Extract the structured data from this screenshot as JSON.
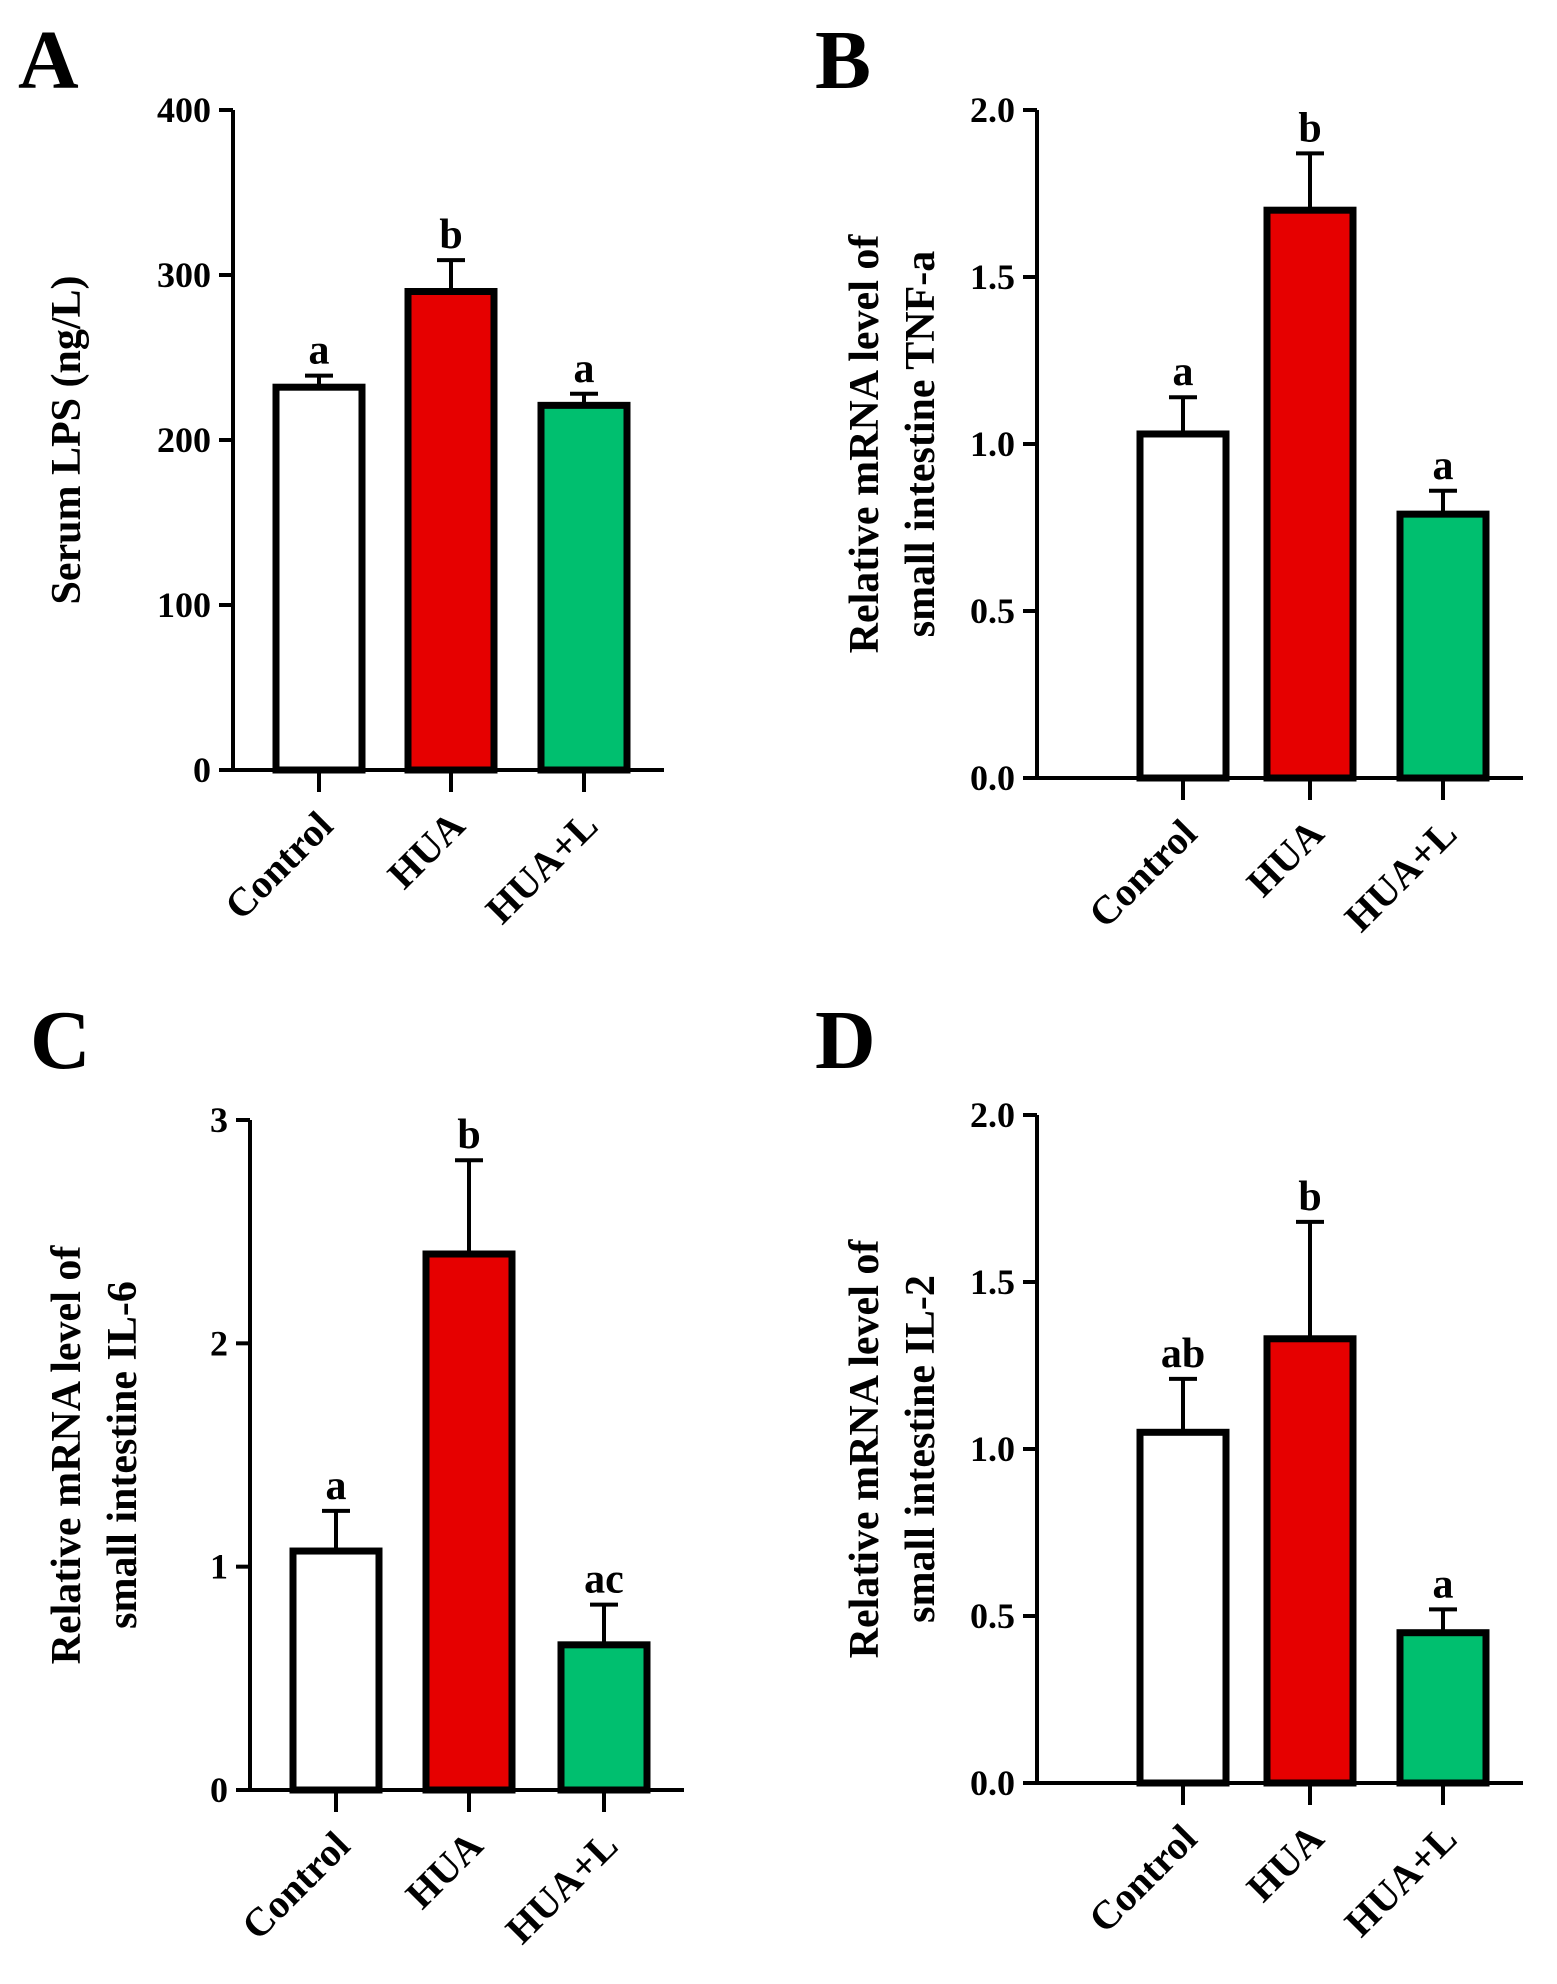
{
  "colors": {
    "Control": "#ffffff",
    "HUA": "#e60000",
    "HUA+L": "#00bf6f",
    "axis": "#000000"
  },
  "chart_data": [
    {
      "panel": "A",
      "type": "bar",
      "categories": [
        "Control",
        "HUA",
        "HUA+L"
      ],
      "values": [
        232,
        290,
        221
      ],
      "errors": [
        7,
        19,
        7
      ],
      "significance": [
        "a",
        "b",
        "a"
      ],
      "ylabel": [
        "Serum LPS (ng/L)"
      ],
      "ylim": [
        0,
        400
      ],
      "yticks": [
        "0",
        "100",
        "200",
        "300",
        "400"
      ],
      "grid": false,
      "legend": "none"
    },
    {
      "panel": "B",
      "type": "bar",
      "categories": [
        "Control",
        "HUA",
        "HUA+L"
      ],
      "values": [
        1.03,
        1.7,
        0.79
      ],
      "errors": [
        0.11,
        0.17,
        0.07
      ],
      "significance": [
        "a",
        "b",
        "a"
      ],
      "ylabel": [
        "Relative mRNA level of",
        "small intestine TNF-a"
      ],
      "ylim": [
        0,
        2.0
      ],
      "yticks": [
        "0.0",
        "0.5",
        "1.0",
        "1.5",
        "2.0"
      ],
      "grid": false,
      "legend": "none"
    },
    {
      "panel": "C",
      "type": "bar",
      "categories": [
        "Control",
        "HUA",
        "HUA+L"
      ],
      "values": [
        1.07,
        2.4,
        0.65
      ],
      "errors": [
        0.18,
        0.42,
        0.18
      ],
      "significance": [
        "a",
        "b",
        "ac"
      ],
      "ylabel": [
        "Relative mRNA level of",
        "small intestine IL-6"
      ],
      "ylim": [
        0,
        3
      ],
      "yticks": [
        "0",
        "1",
        "2",
        "3"
      ],
      "grid": false,
      "legend": "none"
    },
    {
      "panel": "D",
      "type": "bar",
      "categories": [
        "Control",
        "HUA",
        "HUA+L"
      ],
      "values": [
        1.05,
        1.33,
        0.45
      ],
      "errors": [
        0.16,
        0.35,
        0.07
      ],
      "significance": [
        "ab",
        "b",
        "a"
      ],
      "ylabel": [
        "Relative mRNA level of",
        "small intestine IL-2"
      ],
      "ylim": [
        0,
        2.0
      ],
      "yticks": [
        "0.0",
        "0.5",
        "1.0",
        "1.5",
        "2.0"
      ],
      "grid": false,
      "legend": "none"
    }
  ]
}
